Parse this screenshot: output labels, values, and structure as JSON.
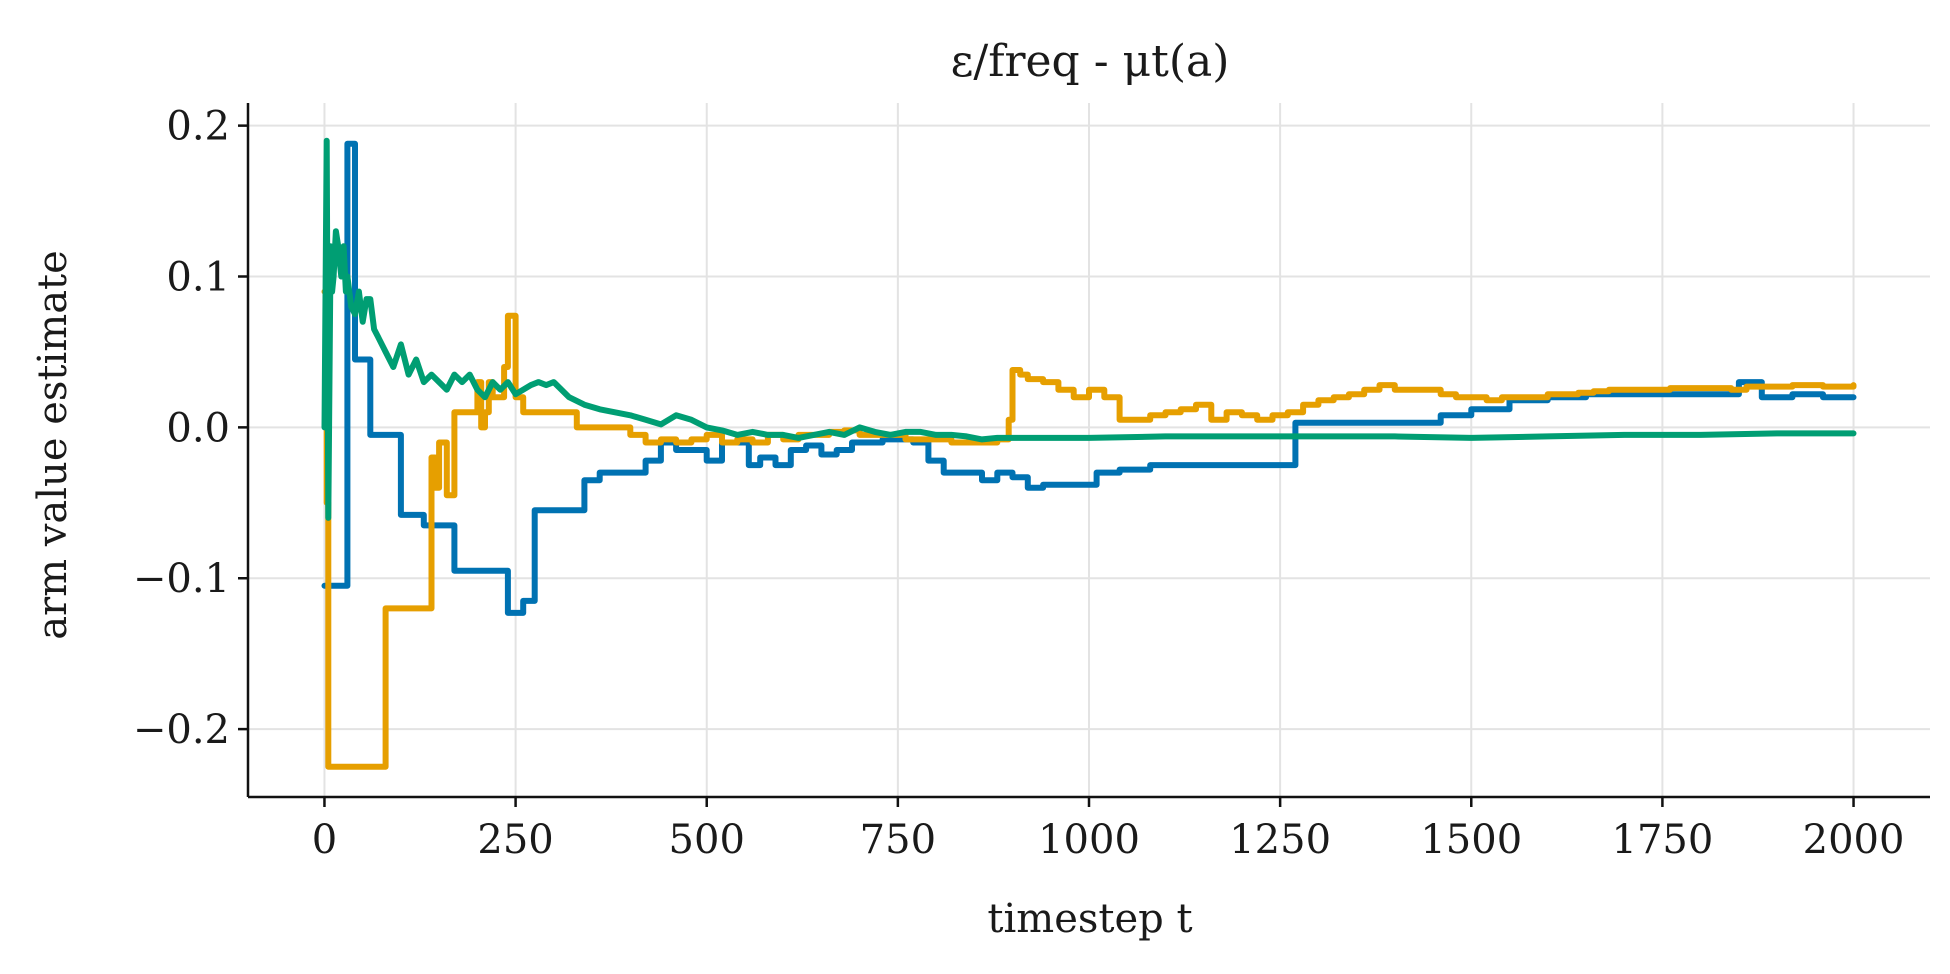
{
  "chart_data": {
    "type": "line",
    "title": "ε/freq - μt(a)",
    "xlabel": "timestep t",
    "ylabel": "arm value estimate",
    "xlim": [
      -100,
      2100
    ],
    "ylim": [
      -0.245,
      0.215
    ],
    "xticks": [
      0,
      250,
      500,
      750,
      1000,
      1250,
      1500,
      1750,
      2000
    ],
    "xtick_labels": [
      "0",
      "250",
      "500",
      "750",
      "1000",
      "1250",
      "1500",
      "1750",
      "2000"
    ],
    "yticks": [
      -0.2,
      -0.1,
      0.0,
      0.1,
      0.2
    ],
    "ytick_labels": [
      "−0.2",
      "−0.1",
      "0.0",
      "0.1",
      "0.2"
    ],
    "grid": true,
    "series": [
      {
        "color": "#0072B2",
        "step": true,
        "x": [
          0,
          3,
          30,
          40,
          60,
          80,
          100,
          110,
          130,
          150,
          170,
          190,
          210,
          230,
          240,
          260,
          275,
          330,
          340,
          360,
          380,
          400,
          420,
          440,
          460,
          480,
          500,
          520,
          540,
          555,
          570,
          590,
          610,
          630,
          650,
          670,
          690,
          710,
          730,
          760,
          770,
          790,
          810,
          840,
          860,
          880,
          900,
          920,
          940,
          960,
          980,
          1010,
          1040,
          1080,
          1120,
          1160,
          1200,
          1240,
          1270,
          1300,
          1350,
          1420,
          1460,
          1500,
          1550,
          1600,
          1650,
          1700,
          1750,
          1800,
          1840,
          1850,
          1880,
          1920,
          1960,
          2000
        ],
        "y": [
          -0.105,
          -0.105,
          0.188,
          0.045,
          -0.005,
          -0.005,
          -0.058,
          -0.058,
          -0.065,
          -0.065,
          -0.095,
          -0.095,
          -0.095,
          -0.095,
          -0.123,
          -0.115,
          -0.055,
          -0.055,
          -0.035,
          -0.03,
          -0.03,
          -0.03,
          -0.022,
          -0.01,
          -0.015,
          -0.015,
          -0.022,
          -0.01,
          -0.01,
          -0.025,
          -0.02,
          -0.025,
          -0.015,
          -0.012,
          -0.018,
          -0.015,
          -0.01,
          -0.01,
          -0.008,
          -0.008,
          -0.01,
          -0.022,
          -0.03,
          -0.03,
          -0.035,
          -0.03,
          -0.033,
          -0.04,
          -0.038,
          -0.038,
          -0.038,
          -0.03,
          -0.028,
          -0.025,
          -0.025,
          -0.025,
          -0.025,
          -0.025,
          0.003,
          0.003,
          0.003,
          0.003,
          0.008,
          0.012,
          0.018,
          0.02,
          0.022,
          0.022,
          0.022,
          0.022,
          0.022,
          0.03,
          0.02,
          0.022,
          0.02,
          0.02
        ]
      },
      {
        "color": "#E69F00",
        "step": true,
        "x": [
          0,
          3,
          5,
          10,
          20,
          40,
          60,
          80,
          100,
          120,
          140,
          145,
          150,
          160,
          170,
          180,
          190,
          200,
          205,
          210,
          215,
          220,
          230,
          235,
          240,
          250,
          260,
          280,
          300,
          320,
          330,
          340,
          360,
          380,
          400,
          420,
          440,
          460,
          480,
          500,
          520,
          540,
          560,
          580,
          600,
          620,
          640,
          660,
          680,
          700,
          720,
          740,
          760,
          780,
          800,
          820,
          840,
          860,
          880,
          895,
          900,
          910,
          920,
          940,
          960,
          980,
          1000,
          1020,
          1040,
          1060,
          1080,
          1100,
          1120,
          1140,
          1160,
          1180,
          1200,
          1220,
          1240,
          1260,
          1280,
          1300,
          1320,
          1340,
          1360,
          1380,
          1400,
          1420,
          1440,
          1460,
          1480,
          1500,
          1520,
          1540,
          1560,
          1580,
          1600,
          1620,
          1640,
          1660,
          1680,
          1700,
          1720,
          1740,
          1760,
          1780,
          1800,
          1820,
          1840,
          1860,
          1880,
          1900,
          1920,
          1940,
          1960,
          1980,
          2000
        ],
        "y": [
          0.09,
          -0.05,
          -0.225,
          -0.225,
          -0.225,
          -0.225,
          -0.225,
          -0.12,
          -0.12,
          -0.12,
          -0.02,
          -0.04,
          -0.01,
          -0.045,
          0.01,
          0.01,
          0.01,
          0.03,
          0.0,
          0.01,
          0.03,
          0.02,
          0.02,
          0.04,
          0.074,
          0.02,
          0.01,
          0.01,
          0.01,
          0.01,
          0.0,
          0.0,
          0.0,
          0.0,
          -0.005,
          -0.01,
          -0.008,
          -0.01,
          -0.008,
          -0.005,
          -0.01,
          -0.008,
          -0.01,
          -0.005,
          -0.008,
          -0.005,
          -0.005,
          -0.003,
          -0.002,
          -0.005,
          -0.005,
          -0.005,
          -0.008,
          -0.008,
          -0.008,
          -0.01,
          -0.01,
          -0.01,
          -0.008,
          0.005,
          0.038,
          0.035,
          0.032,
          0.03,
          0.025,
          0.02,
          0.025,
          0.02,
          0.005,
          0.005,
          0.008,
          0.01,
          0.012,
          0.015,
          0.005,
          0.01,
          0.008,
          0.005,
          0.008,
          0.01,
          0.015,
          0.018,
          0.02,
          0.022,
          0.025,
          0.028,
          0.025,
          0.025,
          0.025,
          0.022,
          0.02,
          0.02,
          0.018,
          0.02,
          0.02,
          0.02,
          0.022,
          0.022,
          0.023,
          0.024,
          0.025,
          0.025,
          0.025,
          0.025,
          0.026,
          0.026,
          0.026,
          0.026,
          0.025,
          0.027,
          0.027,
          0.027,
          0.028,
          0.028,
          0.027,
          0.027,
          0.028
        ]
      },
      {
        "color": "#009E73",
        "step": false,
        "x": [
          0,
          3,
          5,
          8,
          10,
          12,
          15,
          18,
          20,
          22,
          25,
          28,
          30,
          35,
          40,
          45,
          50,
          55,
          60,
          65,
          70,
          80,
          90,
          100,
          110,
          120,
          130,
          140,
          150,
          160,
          170,
          180,
          190,
          200,
          210,
          220,
          230,
          240,
          250,
          260,
          270,
          280,
          290,
          300,
          320,
          340,
          360,
          380,
          400,
          420,
          440,
          460,
          480,
          500,
          520,
          540,
          560,
          580,
          600,
          620,
          640,
          660,
          680,
          700,
          720,
          740,
          760,
          780,
          800,
          820,
          840,
          860,
          880,
          900,
          1000,
          1100,
          1200,
          1300,
          1400,
          1500,
          1600,
          1700,
          1800,
          1900,
          2000
        ],
        "y": [
          0.0,
          0.19,
          -0.06,
          0.12,
          0.09,
          0.1,
          0.13,
          0.12,
          0.11,
          0.1,
          0.12,
          0.09,
          0.1,
          0.08,
          0.075,
          0.09,
          0.07,
          0.085,
          0.085,
          0.065,
          0.06,
          0.05,
          0.04,
          0.055,
          0.035,
          0.045,
          0.03,
          0.035,
          0.03,
          0.025,
          0.035,
          0.03,
          0.035,
          0.025,
          0.02,
          0.03,
          0.025,
          0.03,
          0.022,
          0.025,
          0.028,
          0.03,
          0.028,
          0.03,
          0.02,
          0.015,
          0.012,
          0.01,
          0.008,
          0.005,
          0.002,
          0.008,
          0.005,
          0.0,
          -0.002,
          -0.005,
          -0.003,
          -0.005,
          -0.005,
          -0.007,
          -0.005,
          -0.003,
          -0.005,
          0.0,
          -0.003,
          -0.005,
          -0.003,
          -0.003,
          -0.005,
          -0.005,
          -0.006,
          -0.008,
          -0.007,
          -0.007,
          -0.007,
          -0.006,
          -0.006,
          -0.006,
          -0.006,
          -0.007,
          -0.006,
          -0.005,
          -0.005,
          -0.004,
          -0.004
        ]
      }
    ]
  }
}
